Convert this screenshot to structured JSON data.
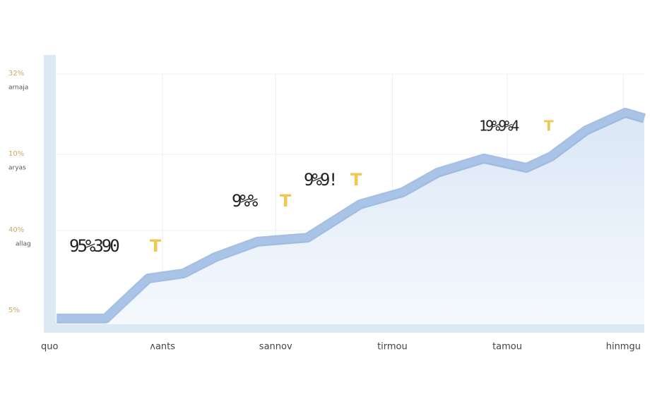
{
  "chart_data": {
    "type": "area",
    "y_labels": [
      {
        "label": "32%",
        "sub": "arnaja"
      },
      {
        "label": "10%",
        "sub": "aryas"
      },
      {
        "label": "40%",
        "sub": "allag"
      },
      {
        "label": "5%"
      }
    ],
    "xlim": [
      0,
      100
    ],
    "xticks": [
      {
        "value": 0,
        "label": "quo"
      },
      {
        "value": 19.5,
        "label": "ᴧants"
      },
      {
        "value": 38.4,
        "label": "sannov"
      },
      {
        "value": 57.9,
        "label": "tirmou"
      },
      {
        "value": 77.1,
        "label": "tamou"
      },
      {
        "value": 96.5,
        "label": "hinmgu"
      }
    ],
    "ylim": [
      0,
      100
    ],
    "x": [
      1.8,
      10,
      17.1,
      23,
      28.3,
      35.4,
      43.7,
      52.5,
      59.6,
      65.5,
      73.2,
      80.3,
      84.4,
      90.3,
      96.8,
      100
    ],
    "values": [
      2.3,
      2.3,
      18.3,
      20.3,
      26.8,
      33,
      34.6,
      47.9,
      52.7,
      60.6,
      66.2,
      62.5,
      67,
      77.5,
      84.5,
      82.3
    ],
    "color": "#a9c4e6",
    "grid": true,
    "annotations": [
      {
        "text": "95%390",
        "mark": "T"
      },
      {
        "text": "9%%",
        "mark": "T"
      },
      {
        "text": "9%9!",
        "mark": "T"
      },
      {
        "text": "19%9%4",
        "mark": "T"
      }
    ]
  }
}
